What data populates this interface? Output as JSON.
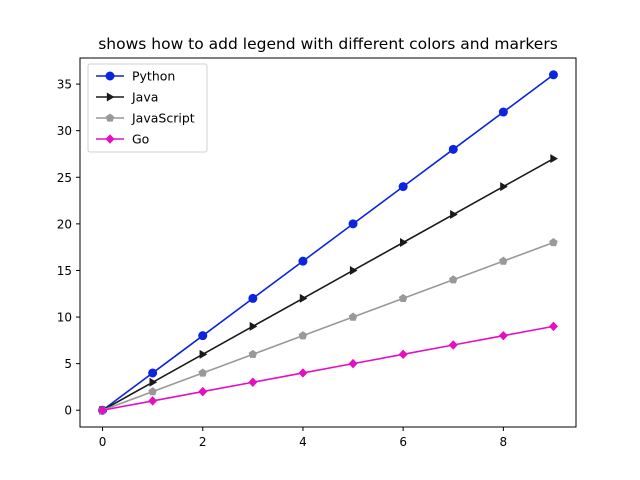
{
  "chart_data": {
    "type": "line",
    "title": "shows how to add legend with different colors and markers",
    "xlabel": "",
    "ylabel": "",
    "x": [
      0,
      1,
      2,
      3,
      4,
      5,
      6,
      7,
      8,
      9
    ],
    "xlim": [
      -0.45,
      9.45
    ],
    "ylim": [
      -1.8,
      37.8
    ],
    "xticks": [
      0,
      2,
      4,
      6,
      8
    ],
    "yticks": [
      0,
      5,
      10,
      15,
      20,
      25,
      30,
      35
    ],
    "grid": false,
    "legend_position": "upper-left",
    "series": [
      {
        "name": "Python",
        "color": "#0b24e0",
        "marker": "circle",
        "values": [
          0,
          4,
          8,
          12,
          16,
          20,
          24,
          28,
          32,
          36
        ]
      },
      {
        "name": "Java",
        "color": "#1a1a1a",
        "marker": "triangle-right",
        "values": [
          0,
          3,
          6,
          9,
          12,
          15,
          18,
          21,
          24,
          27
        ]
      },
      {
        "name": "JavaScript",
        "color": "#999999",
        "marker": "pentagon",
        "values": [
          0,
          2,
          4,
          6,
          8,
          10,
          12,
          14,
          16,
          18
        ]
      },
      {
        "name": "Go",
        "color": "#e60fbf",
        "marker": "diamond",
        "values": [
          0,
          1,
          2,
          3,
          4,
          5,
          6,
          7,
          8,
          9
        ]
      }
    ]
  }
}
